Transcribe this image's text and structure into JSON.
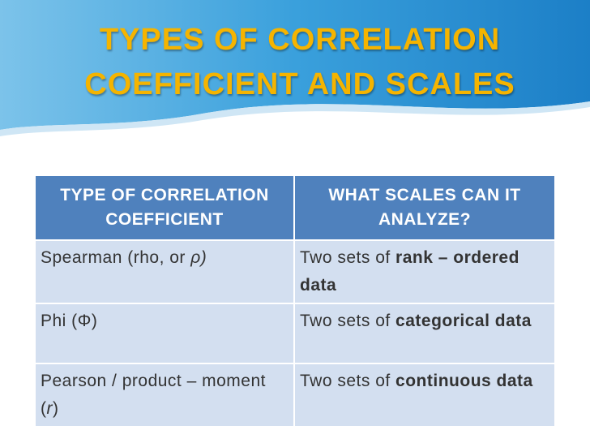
{
  "header": {
    "title": "TYPES OF CORRELATION COEFFICIENT AND SCALES"
  },
  "table": {
    "header": [
      "TYPE OF CORRELATION COEFFICIENT",
      "WHAT SCALES CAN IT ANALYZE?"
    ],
    "rows": [
      [
        [
          {
            "text": "Spearman (rho, or "
          },
          {
            "text": "ρ)",
            "style": "italic"
          }
        ],
        [
          {
            "text": "Two sets of "
          },
          {
            "text": "rank – ordered data",
            "style": "bold"
          }
        ]
      ],
      [
        [
          {
            "text": "Phi (Φ)"
          }
        ],
        [
          {
            "text": "Two sets of "
          },
          {
            "text": "categorical data",
            "style": "bold"
          }
        ]
      ],
      [
        [
          {
            "text": "Pearson / product – moment ("
          },
          {
            "text": "r",
            "style": "italic"
          },
          {
            "text": ")"
          }
        ],
        [
          {
            "text": "Two sets of "
          },
          {
            "text": "continuous data",
            "style": "bold"
          }
        ]
      ]
    ]
  }
}
